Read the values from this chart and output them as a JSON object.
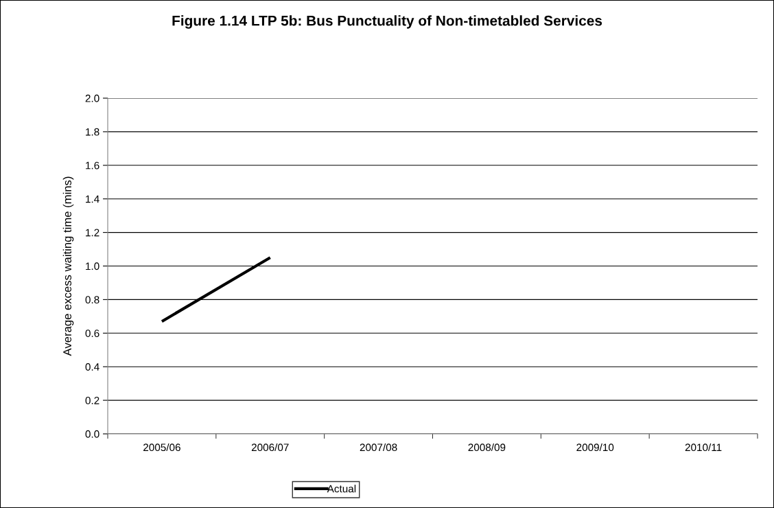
{
  "chart_data": {
    "type": "line",
    "title": "Figure 1.14 LTP 5b: Bus Punctuality of Non-timetabled Services",
    "ylabel": "Average excess waiting time (mins)",
    "categories": [
      "2005/06",
      "2006/07",
      "2007/08",
      "2008/09",
      "2009/10",
      "2010/11"
    ],
    "series": [
      {
        "name": "Actual",
        "color": "#000000",
        "values": [
          0.67,
          1.05,
          null,
          null,
          null,
          null
        ]
      }
    ],
    "ylim": [
      0,
      2
    ],
    "yticks": [
      {
        "value": 0,
        "label": "0.0"
      },
      {
        "value": 0.2,
        "label": "0.2"
      },
      {
        "value": 0.4,
        "label": "0.4"
      },
      {
        "value": 0.6,
        "label": "0.6"
      },
      {
        "value": 0.8,
        "label": "0.8"
      },
      {
        "value": 1.0,
        "label": "1.0"
      },
      {
        "value": 1.2,
        "label": "1.2"
      },
      {
        "value": 1.4,
        "label": "1.4"
      },
      {
        "value": 1.6,
        "label": "1.6"
      },
      {
        "value": 1.8,
        "label": "1.8"
      },
      {
        "value": 2.0,
        "label": "2.0"
      }
    ],
    "grid": "y",
    "legend": "bottom",
    "marker": "none",
    "line_style": "solid"
  }
}
